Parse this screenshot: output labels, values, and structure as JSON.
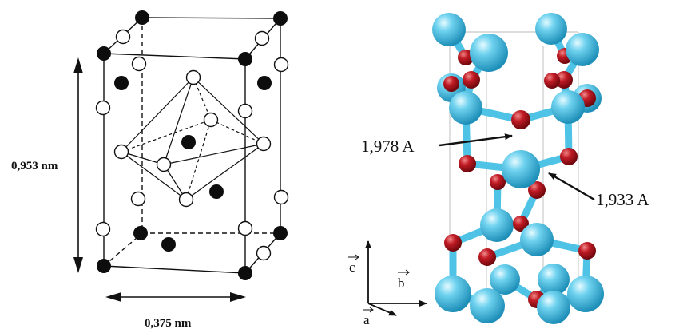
{
  "left_panel": {
    "height_label": "0,953 nm",
    "width_label": "0,375 nm"
  },
  "right_panel": {
    "bond_label_1": "1,978 A",
    "bond_label_2": "1,933 A",
    "axes": {
      "c": "c",
      "b": "b",
      "a": "a"
    },
    "colors": {
      "titanium": "#4fc3e6",
      "oxygen": "#b3161f",
      "bond": "#4fc3e6"
    }
  }
}
